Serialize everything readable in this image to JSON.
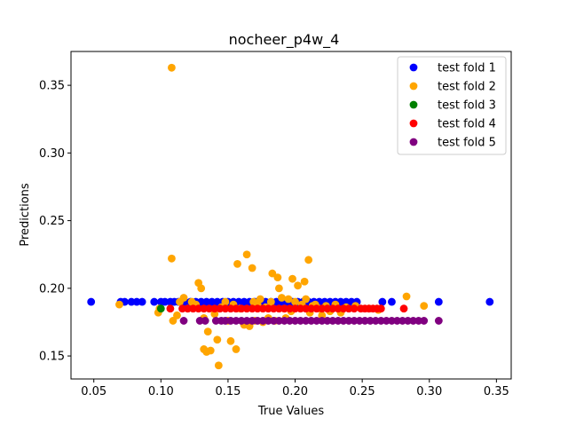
{
  "chart_data": {
    "type": "scatter",
    "title": "nocheer_p4w_4",
    "xlabel": "True Values",
    "ylabel": "Predictions",
    "xlim": [
      0.033,
      0.361
    ],
    "ylim": [
      0.133,
      0.375
    ],
    "xticks": [
      0.05,
      0.1,
      0.15,
      0.2,
      0.25,
      0.3,
      0.35
    ],
    "xtick_labels": [
      "0.05",
      "0.10",
      "0.15",
      "0.20",
      "0.25",
      "0.30",
      "0.35"
    ],
    "yticks": [
      0.15,
      0.2,
      0.25,
      0.3,
      0.35
    ],
    "ytick_labels": [
      "0.15",
      "0.20",
      "0.25",
      "0.30",
      "0.35"
    ],
    "grid": false,
    "legend_position": "top-right",
    "series": [
      {
        "name": "test fold 1",
        "color": "#0000ff",
        "x": [
          0.048,
          0.07,
          0.073,
          0.078,
          0.082,
          0.086,
          0.095,
          0.1,
          0.103,
          0.107,
          0.11,
          0.113,
          0.118,
          0.122,
          0.126,
          0.13,
          0.134,
          0.138,
          0.142,
          0.146,
          0.15,
          0.154,
          0.158,
          0.162,
          0.166,
          0.17,
          0.174,
          0.178,
          0.182,
          0.186,
          0.19,
          0.194,
          0.198,
          0.202,
          0.206,
          0.21,
          0.214,
          0.218,
          0.222,
          0.226,
          0.23,
          0.234,
          0.238,
          0.242,
          0.246,
          0.265,
          0.272,
          0.307,
          0.345
        ],
        "y": [
          0.19,
          0.19,
          0.19,
          0.19,
          0.19,
          0.19,
          0.19,
          0.19,
          0.19,
          0.19,
          0.19,
          0.19,
          0.19,
          0.19,
          0.19,
          0.19,
          0.19,
          0.19,
          0.19,
          0.19,
          0.19,
          0.19,
          0.19,
          0.19,
          0.19,
          0.19,
          0.19,
          0.19,
          0.19,
          0.19,
          0.19,
          0.19,
          0.19,
          0.19,
          0.19,
          0.19,
          0.19,
          0.19,
          0.19,
          0.19,
          0.19,
          0.19,
          0.19,
          0.19,
          0.19,
          0.19,
          0.19,
          0.19,
          0.19
        ]
      },
      {
        "name": "test fold 2",
        "color": "#ffa500",
        "x": [
          0.069,
          0.098,
          0.099,
          0.108,
          0.108,
          0.109,
          0.112,
          0.114,
          0.117,
          0.12,
          0.123,
          0.126,
          0.128,
          0.13,
          0.132,
          0.132,
          0.134,
          0.135,
          0.137,
          0.14,
          0.142,
          0.143,
          0.145,
          0.148,
          0.15,
          0.152,
          0.154,
          0.156,
          0.157,
          0.159,
          0.162,
          0.164,
          0.166,
          0.168,
          0.169,
          0.17,
          0.172,
          0.174,
          0.176,
          0.178,
          0.18,
          0.182,
          0.183,
          0.185,
          0.187,
          0.188,
          0.19,
          0.192,
          0.193,
          0.195,
          0.197,
          0.198,
          0.2,
          0.202,
          0.205,
          0.207,
          0.208,
          0.21,
          0.211,
          0.213,
          0.215,
          0.218,
          0.22,
          0.223,
          0.226,
          0.23,
          0.234,
          0.238,
          0.245,
          0.255,
          0.262,
          0.283,
          0.296
        ],
        "y": [
          0.188,
          0.182,
          0.185,
          0.363,
          0.222,
          0.176,
          0.18,
          0.19,
          0.193,
          0.185,
          0.19,
          0.188,
          0.204,
          0.2,
          0.155,
          0.178,
          0.153,
          0.168,
          0.154,
          0.181,
          0.162,
          0.143,
          0.186,
          0.19,
          0.176,
          0.161,
          0.188,
          0.155,
          0.218,
          0.185,
          0.173,
          0.225,
          0.172,
          0.215,
          0.19,
          0.176,
          0.188,
          0.192,
          0.175,
          0.186,
          0.178,
          0.19,
          0.211,
          0.176,
          0.208,
          0.2,
          0.193,
          0.185,
          0.178,
          0.192,
          0.183,
          0.207,
          0.19,
          0.202,
          0.188,
          0.205,
          0.192,
          0.221,
          0.182,
          0.187,
          0.188,
          0.185,
          0.18,
          0.187,
          0.183,
          0.188,
          0.182,
          0.186,
          0.187,
          0.185,
          0.184,
          0.194,
          0.187
        ]
      },
      {
        "name": "test fold 3",
        "color": "#008000",
        "x": [
          0.1
        ],
        "y": [
          0.185
        ]
      },
      {
        "name": "test fold 4",
        "color": "#ff0000",
        "x": [
          0.107,
          0.116,
          0.12,
          0.124,
          0.128,
          0.132,
          0.136,
          0.14,
          0.144,
          0.148,
          0.152,
          0.156,
          0.16,
          0.164,
          0.168,
          0.172,
          0.176,
          0.18,
          0.184,
          0.188,
          0.192,
          0.196,
          0.2,
          0.204,
          0.208,
          0.212,
          0.216,
          0.22,
          0.224,
          0.228,
          0.232,
          0.236,
          0.24,
          0.244,
          0.249,
          0.252,
          0.255,
          0.258,
          0.261,
          0.264,
          0.281
        ],
        "y": [
          0.185,
          0.185,
          0.185,
          0.185,
          0.185,
          0.185,
          0.185,
          0.185,
          0.185,
          0.185,
          0.185,
          0.185,
          0.185,
          0.185,
          0.185,
          0.185,
          0.185,
          0.185,
          0.185,
          0.185,
          0.185,
          0.185,
          0.185,
          0.185,
          0.185,
          0.185,
          0.185,
          0.185,
          0.185,
          0.185,
          0.185,
          0.185,
          0.185,
          0.185,
          0.185,
          0.185,
          0.185,
          0.185,
          0.185,
          0.185,
          0.185
        ]
      },
      {
        "name": "test fold 5",
        "color": "#800080",
        "x": [
          0.117,
          0.129,
          0.133,
          0.141,
          0.145,
          0.148,
          0.152,
          0.156,
          0.16,
          0.164,
          0.168,
          0.172,
          0.176,
          0.18,
          0.184,
          0.188,
          0.192,
          0.196,
          0.2,
          0.204,
          0.208,
          0.212,
          0.216,
          0.22,
          0.224,
          0.228,
          0.232,
          0.236,
          0.24,
          0.244,
          0.248,
          0.252,
          0.256,
          0.26,
          0.264,
          0.268,
          0.272,
          0.276,
          0.28,
          0.284,
          0.288,
          0.292,
          0.296,
          0.307
        ],
        "y": [
          0.176,
          0.176,
          0.176,
          0.176,
          0.176,
          0.176,
          0.176,
          0.176,
          0.176,
          0.176,
          0.176,
          0.176,
          0.176,
          0.176,
          0.176,
          0.176,
          0.176,
          0.176,
          0.176,
          0.176,
          0.176,
          0.176,
          0.176,
          0.176,
          0.176,
          0.176,
          0.176,
          0.176,
          0.176,
          0.176,
          0.176,
          0.176,
          0.176,
          0.176,
          0.176,
          0.176,
          0.176,
          0.176,
          0.176,
          0.176,
          0.176,
          0.176,
          0.176,
          0.176
        ]
      }
    ]
  }
}
